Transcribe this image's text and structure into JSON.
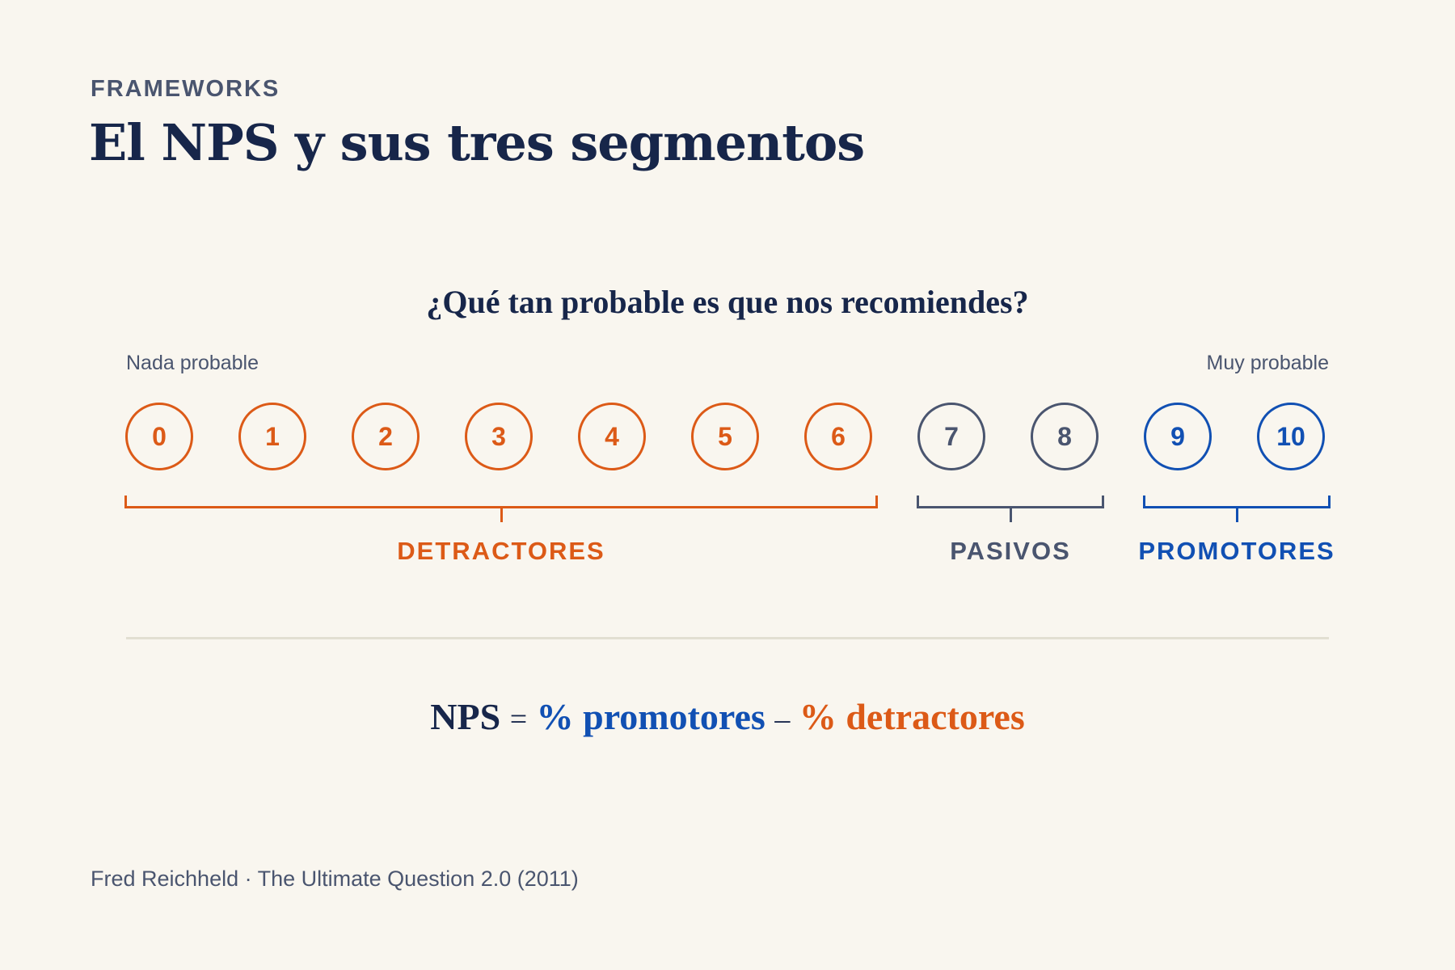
{
  "header": {
    "eyebrow": "FRAMEWORKS",
    "title": "El NPS y sus tres segmentos"
  },
  "question": "¿Qué tan probable es que nos recomiendes?",
  "scale": {
    "low_label": "Nada probable",
    "high_label": "Muy probable",
    "points": [
      {
        "value": "0",
        "segment": "detractores"
      },
      {
        "value": "1",
        "segment": "detractores"
      },
      {
        "value": "2",
        "segment": "detractores"
      },
      {
        "value": "3",
        "segment": "detractores"
      },
      {
        "value": "4",
        "segment": "detractores"
      },
      {
        "value": "5",
        "segment": "detractores"
      },
      {
        "value": "6",
        "segment": "detractores"
      },
      {
        "value": "7",
        "segment": "pasivos"
      },
      {
        "value": "8",
        "segment": "pasivos"
      },
      {
        "value": "9",
        "segment": "promotores"
      },
      {
        "value": "10",
        "segment": "promotores"
      }
    ]
  },
  "segments": {
    "detractores": {
      "label": "DETRACTORES",
      "color": "#dc5a17"
    },
    "pasivos": {
      "label": "PASIVOS",
      "color": "#4a556f"
    },
    "promotores": {
      "label": "PROMOTORES",
      "color": "#1150b3"
    }
  },
  "formula": {
    "nps": "NPS",
    "equals": "=",
    "promoters": "% promotores",
    "minus": "–",
    "detractors": "% detractores"
  },
  "source": "Fred Reichheld · The Ultimate Question 2.0 (2011)",
  "colors": {
    "background": "#f9f6ef",
    "navy": "#17264a",
    "slate": "#4a556f",
    "divider": "#e2dfd2"
  }
}
